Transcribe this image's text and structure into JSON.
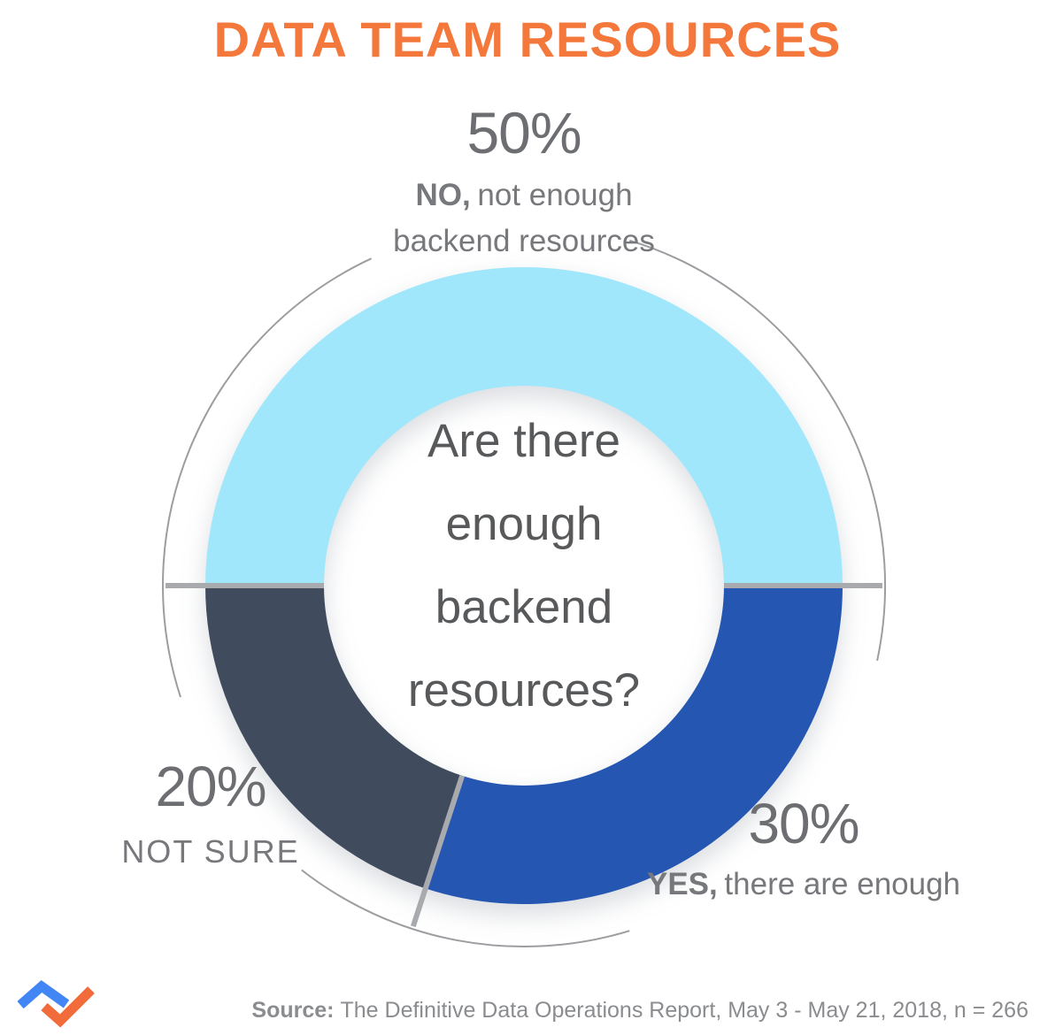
{
  "title": "DATA TEAM RESOURCES",
  "chart_data": {
    "type": "pie",
    "variant": "donut",
    "title": "DATA TEAM RESOURCES",
    "question": "Are there enough backend resources?",
    "center_lines": [
      "Are there",
      "enough",
      "backend",
      "resources?"
    ],
    "start_angle_deg": 180,
    "direction": "clockwise",
    "legend_position": "around-ring",
    "unit": "%",
    "categories": [
      "NO, not enough backend resources",
      "YES, there are enough",
      "NOT SURE"
    ],
    "values": [
      50,
      30,
      20
    ],
    "segments": [
      {
        "id": "no",
        "pct": "50%",
        "value": 50,
        "answer_bold": "NO,",
        "answer_rest": "not enough",
        "answer_line2": "backend resources",
        "color": "#A1E7FB"
      },
      {
        "id": "yes",
        "pct": "30%",
        "value": 30,
        "answer_bold": "YES,",
        "answer_rest": "there are enough",
        "color": "#2456B2"
      },
      {
        "id": "not-sure",
        "pct": "20%",
        "value": 20,
        "answer": "NOT SURE",
        "color": "#404B5E"
      }
    ]
  },
  "source": {
    "prefix": "Source:",
    "text": "The Definitive Data Operations Report, May 3 - May 21, 2018, n = 266"
  },
  "colors": {
    "title": "#F4783C",
    "pct_text": "#6D6E71",
    "label_text": "#77787B",
    "center_text": "#58595B",
    "source_text": "#8A8C8F",
    "divider": "#A8AAAD",
    "outer_circle": "#9B9DA0",
    "logo_blue": "#4285F4",
    "logo_orange": "#F26B3A"
  }
}
